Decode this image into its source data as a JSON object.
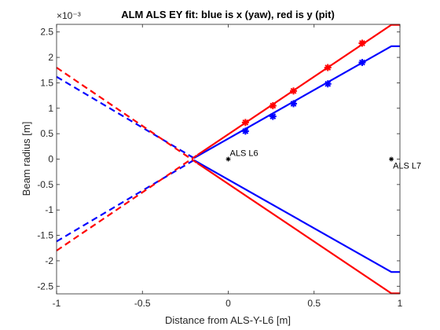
{
  "chart_data": {
    "type": "line",
    "title": "ALM ALS EY fit: blue is x (yaw), red is y (pit)",
    "xlabel": "Distance from ALS-Y-L6 [m]",
    "ylabel": "Beam radius [m]",
    "y_exponent_label": "×10⁻³",
    "xlim": [
      -1,
      1
    ],
    "ylim": [
      -2.65,
      2.65
    ],
    "y_scale_factor": 0.001,
    "x_ticks": [
      -1,
      -0.5,
      0,
      0.5,
      1
    ],
    "x_tick_labels": [
      "-1",
      "-0.5",
      "0",
      "0.5",
      "1"
    ],
    "y_ticks": [
      -2.5,
      -2,
      -1.5,
      -1,
      -0.5,
      0,
      0.5,
      1,
      1.5,
      2,
      2.5
    ],
    "y_tick_labels": [
      "-2.5",
      "-2",
      "-1.5",
      "-1",
      "-0.5",
      "0",
      "0.5",
      "1",
      "1.5",
      "2",
      "2.5"
    ],
    "series": [
      {
        "color": "#0000ff",
        "dashed_upper": [
          [
            -1,
            1.62
          ],
          [
            -0.2,
            0.02
          ]
        ],
        "dashed_lower": [
          [
            -1,
            -1.62
          ],
          [
            -0.2,
            -0.02
          ]
        ],
        "solid_upper": [
          [
            -0.2,
            0.02
          ],
          [
            0.95,
            2.22
          ],
          [
            1.0,
            2.22
          ]
        ],
        "solid_lower": [
          [
            -0.2,
            -0.02
          ],
          [
            0.95,
            -2.22
          ],
          [
            1.0,
            -2.22
          ]
        ],
        "markers": [
          [
            0.1,
            0.55
          ],
          [
            0.26,
            0.84
          ],
          [
            0.38,
            1.09
          ],
          [
            0.58,
            1.48
          ],
          [
            0.78,
            1.9
          ]
        ]
      },
      {
        "color": "#ff0000",
        "dashed_upper": [
          [
            -1,
            1.8
          ],
          [
            -0.18,
            -0.08
          ]
        ],
        "dashed_lower": [
          [
            -1,
            -1.8
          ],
          [
            -0.18,
            0.08
          ]
        ],
        "solid_upper": [
          [
            -0.18,
            0.08
          ],
          [
            0.95,
            2.64
          ],
          [
            1.0,
            2.64
          ]
        ],
        "solid_lower": [
          [
            -0.18,
            -0.08
          ],
          [
            0.95,
            -2.64
          ],
          [
            1.0,
            -2.64
          ]
        ],
        "markers": [
          [
            0.1,
            0.72
          ],
          [
            0.26,
            1.05
          ],
          [
            0.38,
            1.34
          ],
          [
            0.58,
            1.8
          ],
          [
            0.78,
            2.28
          ]
        ]
      }
    ],
    "annotations": [
      {
        "x": 0.0,
        "y": 0.0,
        "text": "ALS L6"
      },
      {
        "x": 0.95,
        "y": 0.0,
        "text": "ALS L7"
      }
    ]
  }
}
